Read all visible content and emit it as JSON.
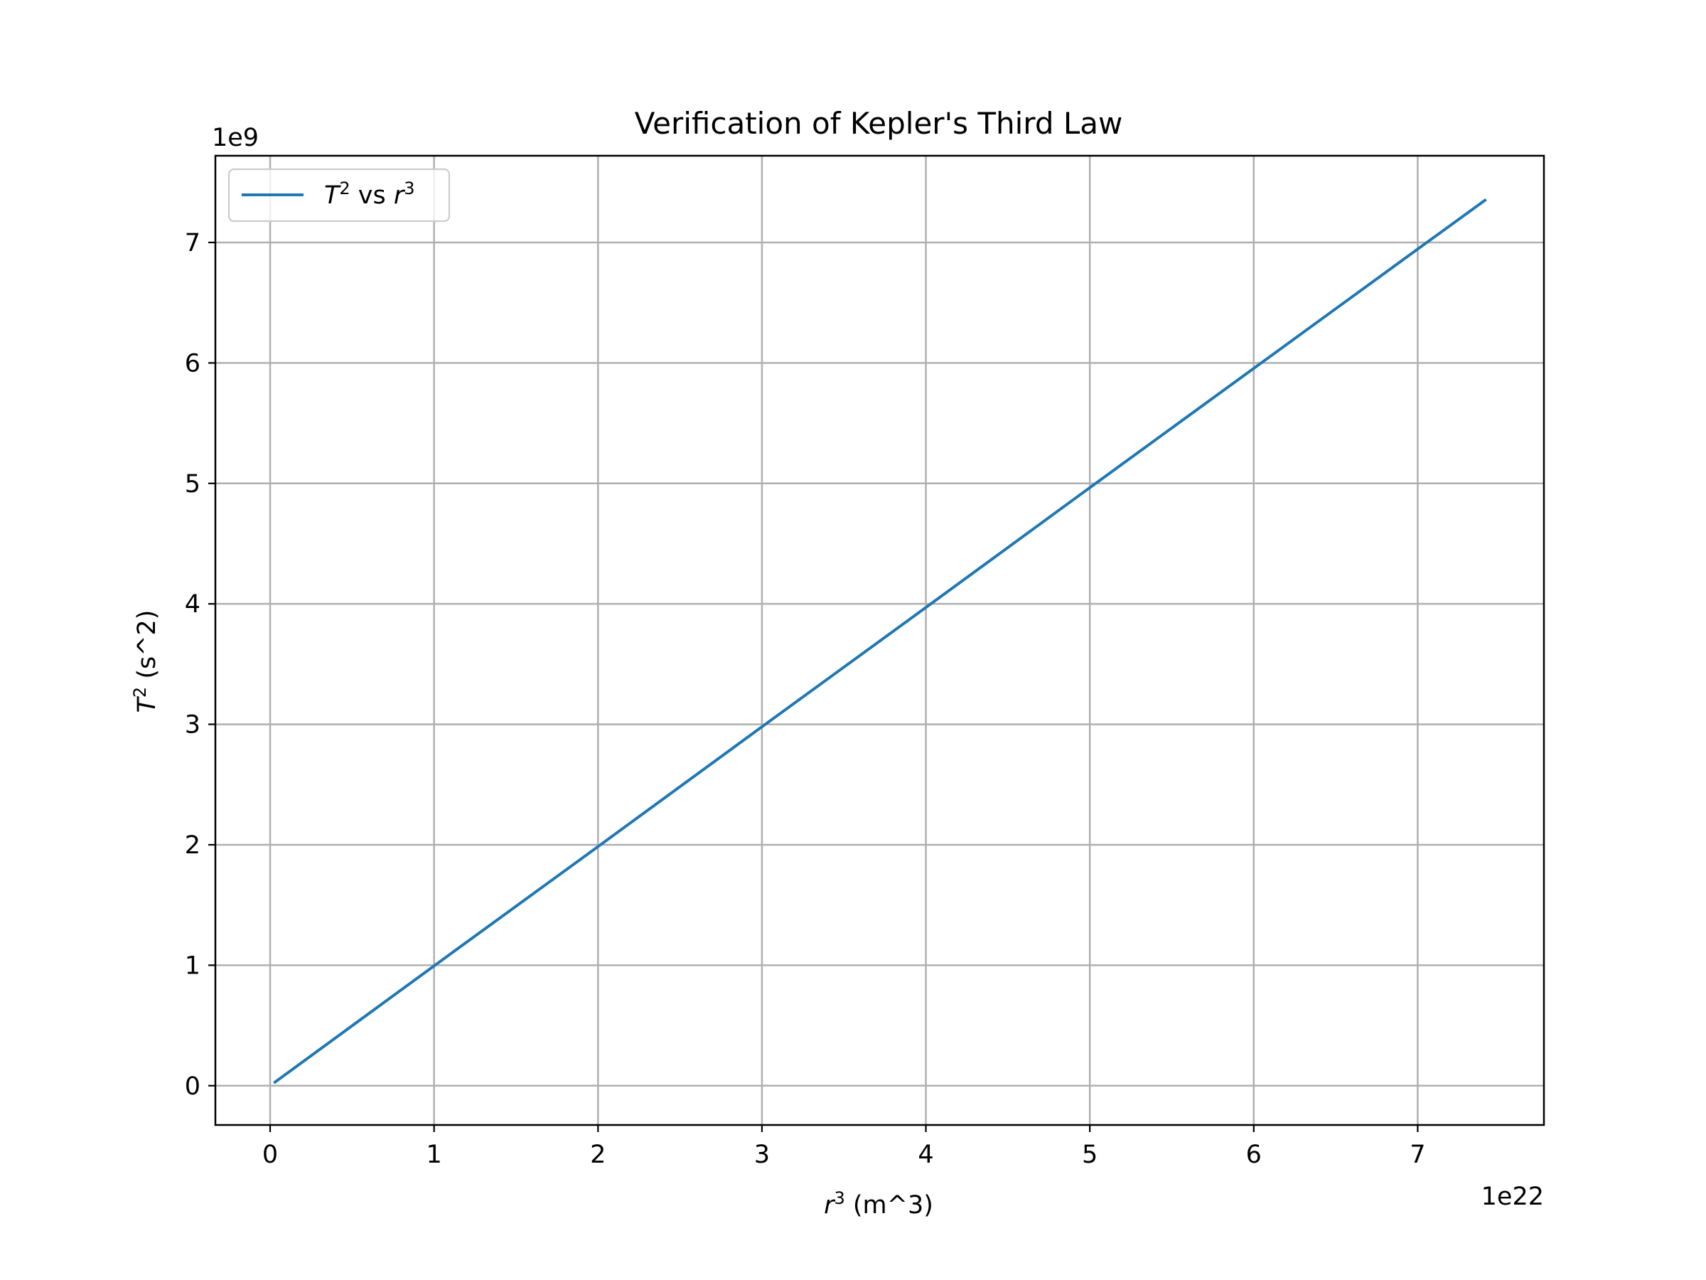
{
  "chart_data": {
    "type": "line",
    "title": "Verification of Kepler's Third Law",
    "xlabel": {
      "base": "r",
      "sup": "3",
      "rest": " (m^3)"
    },
    "ylabel": {
      "base": "T",
      "sup": "2",
      "rest": " (s^2)"
    },
    "x_offset_label": "1e22",
    "y_offset_label": "1e9",
    "x_scale_exponent": 22,
    "y_scale_exponent": 9,
    "xlim": [
      -0.334,
      7.77
    ],
    "ylim": [
      -0.326,
      7.72
    ],
    "x_ticks": [
      0,
      1,
      2,
      3,
      4,
      5,
      6,
      7
    ],
    "y_ticks": [
      0,
      1,
      2,
      3,
      4,
      5,
      6,
      7
    ],
    "x_tick_labels": [
      "0",
      "1",
      "2",
      "3",
      "4",
      "5",
      "6",
      "7"
    ],
    "y_tick_labels": [
      "0",
      "1",
      "2",
      "3",
      "4",
      "5",
      "6",
      "7"
    ],
    "grid": true,
    "legend_position": "upper-left",
    "series": [
      {
        "name": {
          "base": "T",
          "sup": "2",
          "mid": " vs ",
          "base2": "r",
          "sup2": "3"
        },
        "color": "#1f77b4",
        "x": [
          0.03,
          1.0,
          2.0,
          3.0,
          4.0,
          5.0,
          6.0,
          7.0,
          7.41
        ],
        "y": [
          0.03,
          0.995,
          1.985,
          2.98,
          3.97,
          4.965,
          5.955,
          6.945,
          7.35
        ]
      }
    ]
  }
}
